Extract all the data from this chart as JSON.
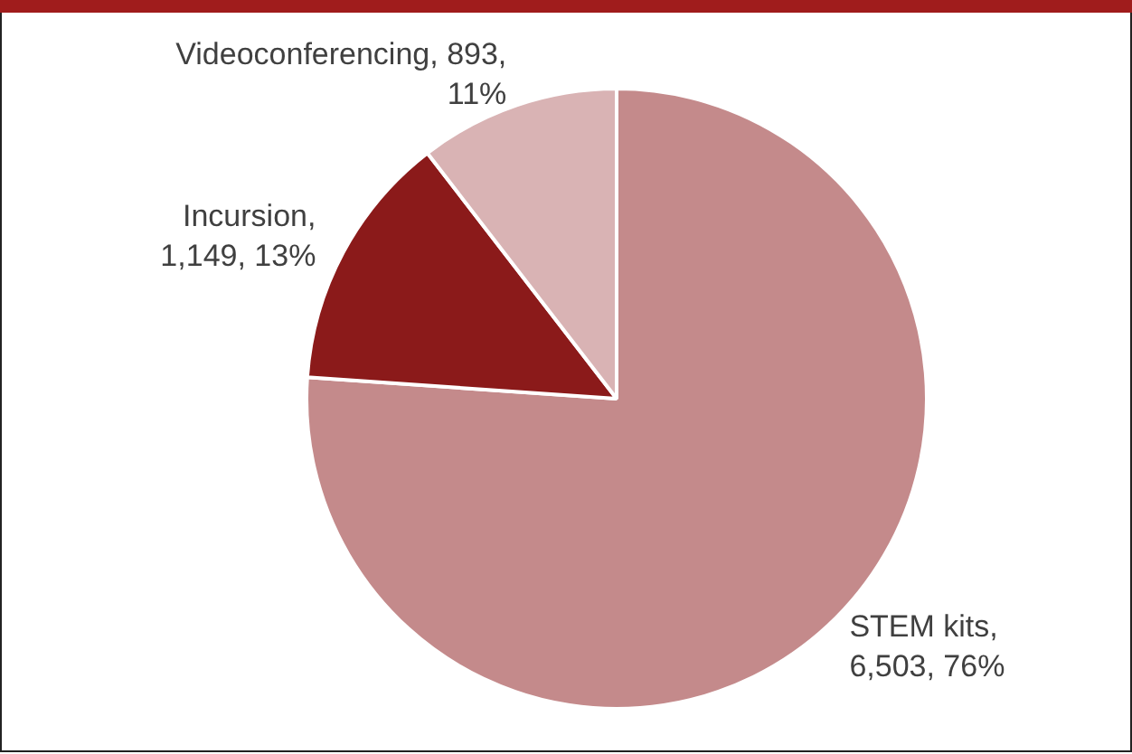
{
  "chart_data": {
    "type": "pie",
    "categories": [
      "STEM kits",
      "Incursion",
      "Videoconferencing"
    ],
    "values": [
      6503,
      1149,
      893
    ],
    "colors": [
      "#c48a8b",
      "#8b1a1a",
      "#d9b3b4"
    ],
    "value_labels": [
      ",\n6,503, 76%",
      ",\n1,149, 13%",
      ", 893,\n11%"
    ],
    "legend": false
  }
}
